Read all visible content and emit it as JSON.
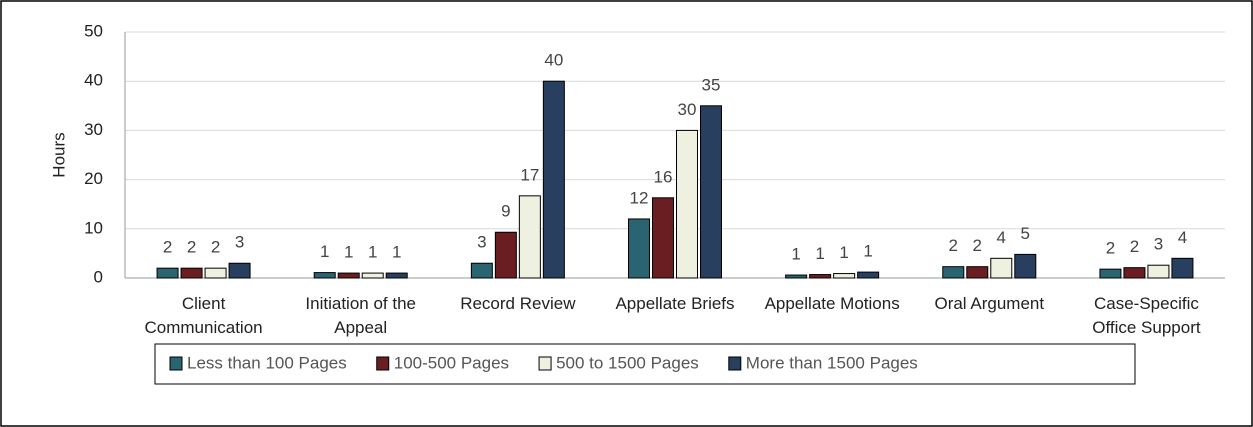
{
  "chart_data": {
    "type": "bar",
    "y_label": "Hours",
    "categories": [
      "Client Communication",
      "Initiation of the Appeal",
      "Record Review",
      "Appellate Briefs",
      "Appellate Motions",
      "Oral Argument",
      "Case-Specific Office Support"
    ],
    "series": [
      {
        "name": "Less than 100 Pages",
        "color": "#2a6470",
        "values": [
          2,
          1.1,
          3,
          12,
          0.6,
          2.3,
          1.8
        ],
        "value_labels": [
          "2",
          "1",
          "3",
          "12",
          "1",
          "2",
          "2"
        ]
      },
      {
        "name": "100-500 Pages",
        "color": "#6b1e22",
        "values": [
          2,
          1,
          9.3,
          16.3,
          0.7,
          2.3,
          2.1
        ],
        "value_labels": [
          "2",
          "1",
          "9",
          "16",
          "1",
          "2",
          "2"
        ]
      },
      {
        "name": "500 to 1500 Pages",
        "color": "#eef0e0",
        "values": [
          2,
          1,
          16.7,
          30,
          0.9,
          4,
          2.6
        ],
        "value_labels": [
          "2",
          "1",
          "17",
          "30",
          "1",
          "4",
          "3"
        ]
      },
      {
        "name": "More than 1500 Pages",
        "color": "#283f60",
        "values": [
          3,
          1,
          40,
          35,
          1.2,
          4.8,
          4
        ],
        "value_labels": [
          "3",
          "1",
          "40",
          "35",
          "1",
          "5",
          "4"
        ]
      }
    ],
    "ylim": [
      0,
      50
    ],
    "yticks": [
      0,
      10,
      20,
      30,
      40,
      50
    ],
    "grid": true
  }
}
